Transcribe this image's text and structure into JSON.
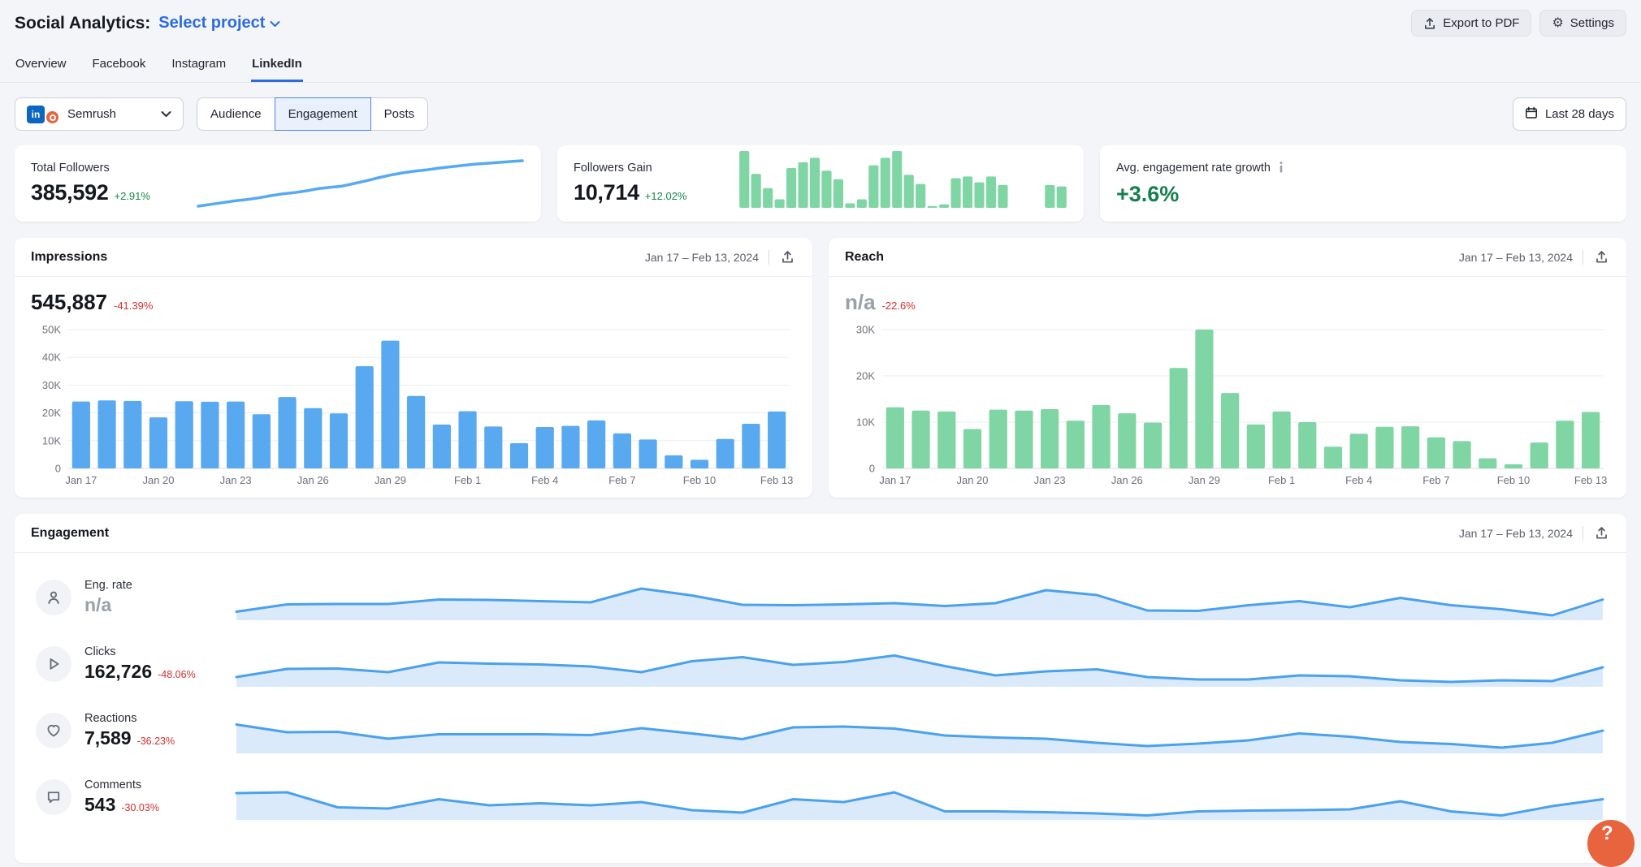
{
  "header": {
    "title": "Social Analytics:",
    "project_selector": "Select project",
    "export_button": "Export to PDF",
    "settings_button": "Settings"
  },
  "tabs": [
    {
      "label": "Overview",
      "active": false
    },
    {
      "label": "Facebook",
      "active": false
    },
    {
      "label": "Instagram",
      "active": false
    },
    {
      "label": "LinkedIn",
      "active": true
    }
  ],
  "filters": {
    "account_selector": "Semrush",
    "account_network": "LinkedIn",
    "segments": [
      {
        "label": "Audience",
        "selected": false
      },
      {
        "label": "Engagement",
        "selected": true
      },
      {
        "label": "Posts",
        "selected": false
      }
    ],
    "date_range_button": "Last 28 days"
  },
  "stat_cards": [
    {
      "label": "Total Followers",
      "value": "385,592",
      "change": "+2.91%"
    },
    {
      "label": "Followers Gain",
      "value": "10,714",
      "change": "+12.02%"
    },
    {
      "label": "Avg. engagement rate growth",
      "value": "+3.6%"
    }
  ],
  "impressions_card": {
    "title": "Impressions",
    "date_range": "Jan 17 – Feb 13, 2024",
    "value": "545,887",
    "change": "-41.39%"
  },
  "reach_card": {
    "title": "Reach",
    "date_range": "Jan 17 – Feb 13, 2024",
    "value": "n/a",
    "change": "-22.6%"
  },
  "engagement_card": {
    "title": "Engagement",
    "date_range": "Jan 17 – Feb 13, 2024",
    "rows": [
      {
        "icon": "person-icon",
        "label": "Eng. rate",
        "value": "n/a",
        "change": ""
      },
      {
        "icon": "cursor-icon",
        "label": "Clicks",
        "value": "162,726",
        "change": "-48.06%"
      },
      {
        "icon": "heart-icon",
        "label": "Reactions",
        "value": "7,589",
        "change": "-36.23%"
      },
      {
        "icon": "comment-icon",
        "label": "Comments",
        "value": "543",
        "change": "-30.03%"
      }
    ]
  },
  "help_button": "?",
  "colors": {
    "accent_blue": "#2b6cdf",
    "bar_blue": "#58a9f0",
    "bar_green": "#7fd5a4",
    "line_blue": "#4aa1ec",
    "area_fill": "#daeafb",
    "green_text": "#13874b",
    "red_text": "#d32f2f",
    "help_orange": "#e8643e"
  },
  "chart_data": [
    {
      "id": "impressions",
      "type": "bar",
      "title": "Impressions (daily)",
      "categories": [
        "Jan 17",
        "Jan 18",
        "Jan 19",
        "Jan 20",
        "Jan 21",
        "Jan 22",
        "Jan 23",
        "Jan 24",
        "Jan 25",
        "Jan 26",
        "Jan 27",
        "Jan 28",
        "Jan 29",
        "Jan 30",
        "Jan 31",
        "Feb 1",
        "Feb 2",
        "Feb 3",
        "Feb 4",
        "Feb 5",
        "Feb 6",
        "Feb 7",
        "Feb 8",
        "Feb 9",
        "Feb 10",
        "Feb 11",
        "Feb 12",
        "Feb 13"
      ],
      "values": [
        24100,
        24500,
        24300,
        18400,
        24200,
        24000,
        24100,
        19500,
        25700,
        21700,
        19800,
        36800,
        46000,
        26100,
        15800,
        20600,
        15100,
        9100,
        14900,
        15300,
        17300,
        12600,
        10400,
        4700,
        3100,
        10600,
        16100,
        20500
      ],
      "ylim": [
        0,
        50000
      ],
      "yticks": [
        [
          0,
          "0"
        ],
        [
          10000,
          "10K"
        ],
        [
          20000,
          "20K"
        ],
        [
          30000,
          "30K"
        ],
        [
          40000,
          "40K"
        ],
        [
          50000,
          "50K"
        ]
      ],
      "xtick_every": 3,
      "grid": true,
      "color": "#58a9f0",
      "bar_ratio": 0.7
    },
    {
      "id": "reach",
      "type": "bar",
      "title": "Reach (daily)",
      "categories": [
        "Jan 17",
        "Jan 18",
        "Jan 19",
        "Jan 20",
        "Jan 21",
        "Jan 22",
        "Jan 23",
        "Jan 24",
        "Jan 25",
        "Jan 26",
        "Jan 27",
        "Jan 28",
        "Jan 29",
        "Jan 30",
        "Jan 31",
        "Feb 1",
        "Feb 2",
        "Feb 3",
        "Feb 4",
        "Feb 5",
        "Feb 6",
        "Feb 7",
        "Feb 8",
        "Feb 9",
        "Feb 10",
        "Feb 11",
        "Feb 12",
        "Feb 13"
      ],
      "values": [
        13200,
        12500,
        12300,
        8500,
        12700,
        12500,
        12800,
        10300,
        13700,
        11900,
        9900,
        21700,
        30000,
        16300,
        9500,
        12300,
        10000,
        4700,
        7500,
        9000,
        9100,
        6700,
        5900,
        2200,
        900,
        5600,
        10300,
        12200
      ],
      "ylim": [
        0,
        30000
      ],
      "yticks": [
        [
          0,
          "0"
        ],
        [
          10000,
          "10K"
        ],
        [
          20000,
          "20K"
        ],
        [
          30000,
          "30K"
        ]
      ],
      "xtick_every": 3,
      "grid": true,
      "color": "#7fd5a4",
      "bar_ratio": 0.7
    },
    {
      "id": "followers_sparkline",
      "type": "line",
      "title": "Total Followers trend, Jan 17 – Feb 13, 2024 (28 days)",
      "values": [
        375200,
        375600,
        376000,
        376400,
        376700,
        377100,
        377600,
        378000,
        378300,
        378700,
        379200,
        379500,
        379800,
        380400,
        381000,
        381700,
        382300,
        382800,
        383200,
        383500,
        383900,
        384200,
        384500,
        384800,
        385000,
        385200,
        385400,
        385592
      ],
      "color": "#55aaf2",
      "stroke": 3.5
    },
    {
      "id": "followers_gain",
      "type": "bar",
      "title": "Followers Gain per day, Jan 17 – Feb 13, 2024 (28 days, est.)",
      "values": [
        835,
        500,
        290,
        125,
        585,
        670,
        735,
        545,
        420,
        65,
        125,
        625,
        735,
        835,
        485,
        350,
        25,
        50,
        435,
        460,
        375,
        460,
        335,
        0,
        0,
        0,
        335,
        315
      ],
      "color": "#7fd5a4",
      "bar_ratio": 0.84
    },
    {
      "id": "eng_rate",
      "type": "area",
      "title": "Eng. rate trend (relative, no axis shown), Jan 17 – Feb 13, 2024",
      "values": [
        15,
        33,
        34,
        34,
        45,
        44,
        41,
        38,
        72,
        55,
        32,
        31,
        33,
        36,
        29,
        36,
        68,
        56,
        18,
        17,
        31,
        41,
        26,
        49,
        31,
        21,
        6,
        45
      ],
      "ylim": [
        0,
        100
      ],
      "color": "#4aa1ec",
      "fill": "#daeafb",
      "stroke": 3
    },
    {
      "id": "clicks",
      "type": "area",
      "title": "Clicks trend (relative, no axis shown), Jan 17 – Feb 13, 2024",
      "values": [
        18,
        38,
        39,
        30,
        54,
        51,
        49,
        44,
        30,
        57,
        67,
        48,
        55,
        71,
        45,
        22,
        32,
        37,
        18,
        12,
        12,
        22,
        20,
        10,
        6,
        10,
        8,
        42
      ],
      "ylim": [
        0,
        100
      ],
      "color": "#4aa1ec",
      "fill": "#daeafb",
      "stroke": 3
    },
    {
      "id": "reactions",
      "type": "area",
      "title": "Reactions trend (relative, no axis shown), Jan 17 – Feb 13, 2024",
      "values": [
        65,
        46,
        47,
        30,
        41,
        41,
        41,
        39,
        56,
        43,
        29,
        58,
        60,
        55,
        38,
        33,
        30,
        20,
        12,
        18,
        26,
        43,
        35,
        22,
        17,
        8,
        20,
        50
      ],
      "ylim": [
        0,
        100
      ],
      "color": "#4aa1ec",
      "fill": "#daeafb",
      "stroke": 3
    },
    {
      "id": "comments",
      "type": "area",
      "title": "Comments trend (relative, no axis shown), Jan 17 – Feb 13, 2024",
      "values": [
        60,
        62,
        25,
        22,
        45,
        30,
        35,
        30,
        38,
        18,
        12,
        45,
        38,
        62,
        15,
        15,
        13,
        10,
        5,
        15,
        17,
        18,
        20,
        40,
        15,
        5,
        28,
        45
      ],
      "ylim": [
        0,
        100
      ],
      "color": "#4aa1ec",
      "fill": "#daeafb",
      "stroke": 3
    }
  ]
}
